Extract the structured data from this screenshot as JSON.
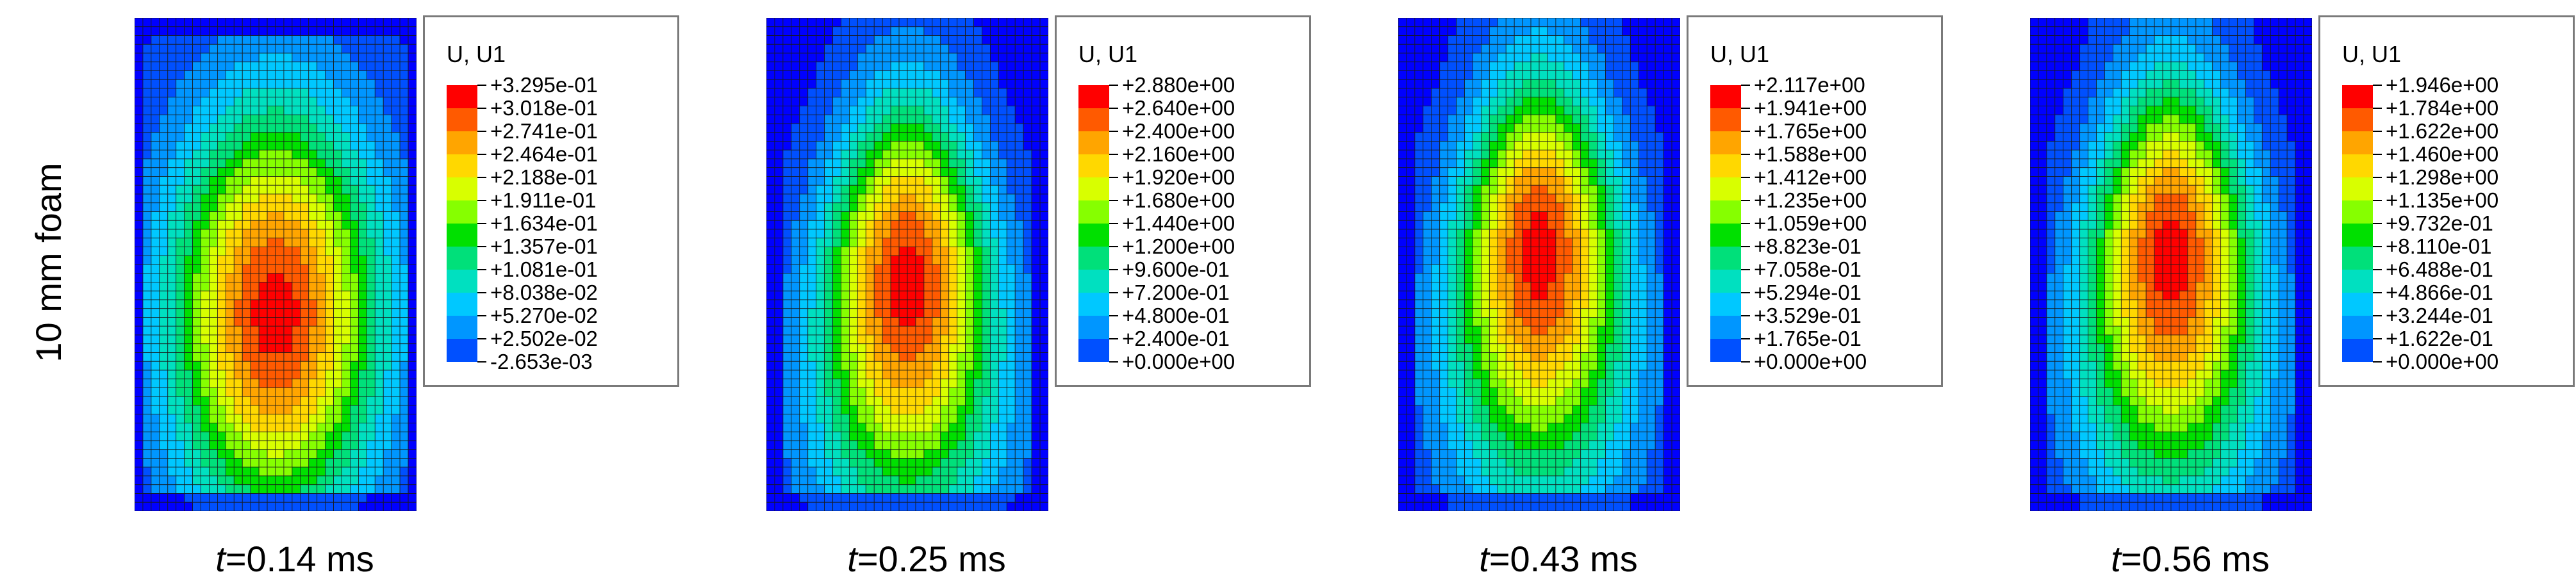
{
  "row_label": "10 mm foam",
  "panels": [
    {
      "caption_var": "t",
      "caption_value": "=0.14 ms",
      "legend_title": "U, U1",
      "legend_values": [
        "+3.295e-01",
        "+3.018e-01",
        "+2.741e-01",
        "+2.464e-01",
        "+2.188e-01",
        "+1.911e-01",
        "+1.634e-01",
        "+1.357e-01",
        "+1.081e-01",
        "+8.038e-02",
        "+5.270e-02",
        "+2.502e-02",
        "-2.653e-03"
      ],
      "field": {
        "pattern": "central-blob",
        "peak_x_fraction": 0.5,
        "peak_y_fraction": 0.6
      }
    },
    {
      "caption_var": "t",
      "caption_value": "=0.25 ms",
      "legend_title": "U, U1",
      "legend_values": [
        "+2.880e+00",
        "+2.640e+00",
        "+2.400e+00",
        "+2.160e+00",
        "+1.920e+00",
        "+1.680e+00",
        "+1.440e+00",
        "+1.200e+00",
        "+9.600e-01",
        "+7.200e-01",
        "+4.800e-01",
        "+2.400e-01",
        "+0.000e+00"
      ],
      "field": {
        "pattern": "vertical-plume",
        "peak_x_fraction": 0.5,
        "peak_y_fraction": 0.53
      }
    },
    {
      "caption_var": "t",
      "caption_value": "=0.43 ms",
      "legend_title": "U, U1",
      "legend_values": [
        "+2.117e+00",
        "+1.941e+00",
        "+1.765e+00",
        "+1.588e+00",
        "+1.412e+00",
        "+1.235e+00",
        "+1.059e+00",
        "+8.823e-01",
        "+7.058e-01",
        "+5.294e-01",
        "+3.529e-01",
        "+1.765e-01",
        "+0.000e+00"
      ],
      "field": {
        "pattern": "vertical-plume",
        "peak_x_fraction": 0.5,
        "peak_y_fraction": 0.47
      }
    },
    {
      "caption_var": "t",
      "caption_value": "=0.56 ms",
      "legend_title": "U, U1",
      "legend_values": [
        "+1.946e+00",
        "+1.784e+00",
        "+1.622e+00",
        "+1.460e+00",
        "+1.298e+00",
        "+1.135e+00",
        "+9.732e-01",
        "+8.110e-01",
        "+6.488e-01",
        "+4.866e-01",
        "+3.244e-01",
        "+1.622e-01",
        "+0.000e+00"
      ],
      "field": {
        "pattern": "vertical-plume",
        "peak_x_fraction": 0.5,
        "peak_y_fraction": 0.48
      }
    }
  ],
  "colormap": [
    "#ff0000",
    "#ff5a00",
    "#ffa500",
    "#ffd800",
    "#d8ff00",
    "#86ff00",
    "#00e000",
    "#00e07a",
    "#00e0c0",
    "#00c8ff",
    "#0096ff",
    "#0050ff",
    "#0000ff"
  ],
  "mesh_color": "#1a1a1a"
}
